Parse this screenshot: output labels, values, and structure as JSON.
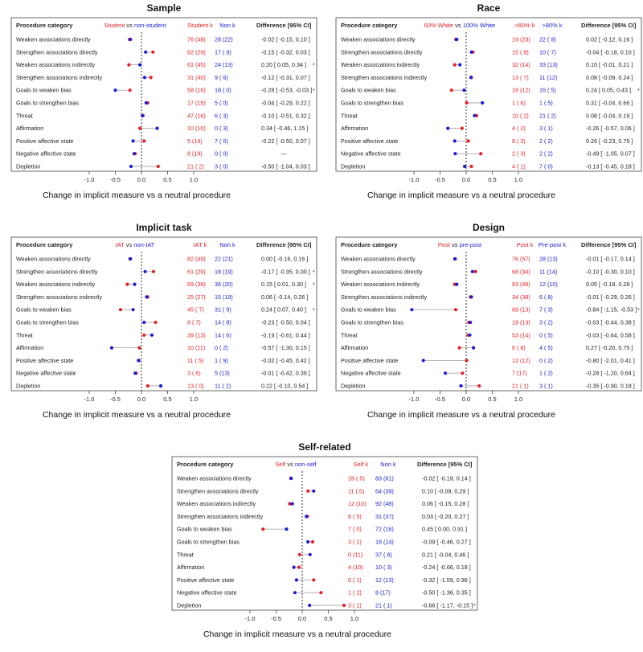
{
  "figure": {
    "xlabel": "Change in implicit measure vs a neutral procedure",
    "header_procedure": "Procedure category",
    "header_diff": "Difference [95% CI]",
    "vs_word": "vs",
    "axis_ticks": [
      -1.0,
      -0.5,
      0.0,
      0.5,
      1.0
    ],
    "axis_tick_labels": [
      "-1.0",
      "-0.5",
      "0.0",
      "0.5",
      "1.0"
    ],
    "xlim": [
      -1.0,
      1.0
    ],
    "sig_marker": "*",
    "colors": {
      "group1": "#e8202a",
      "group2": "#1c1cd6",
      "segment": "#aaaaaa",
      "zero_line": "#000000"
    },
    "categories": [
      "Weaken associations directly",
      "Strengthen associations directly",
      "Weaken associations indirectly",
      "Strengthen associations indirectly",
      "Goals to weaken bias",
      "Goals to strengthen bias",
      "Threat",
      "Affirmation",
      "Positive affective state",
      "Negative affective state",
      "Depletion"
    ]
  },
  "chart_data": [
    {
      "type": "dot",
      "title": "Sample",
      "group1_name": "Student",
      "group2_name": "non-student",
      "col1_header": "Student k",
      "col2_header": "Non k",
      "group1_values": [
        -0.23,
        0.22,
        -0.24,
        0.18,
        -0.22,
        0.12,
        0.03,
        -0.03,
        0.05,
        -0.12,
        0.32
      ],
      "group2_values": [
        -0.21,
        0.08,
        -0.03,
        0.06,
        -0.5,
        0.09,
        0.02,
        0.3,
        -0.16,
        -0.14,
        -0.2
      ],
      "k1": [
        "76 (48)",
        "62 (29)",
        "61 (45)",
        "31 (40)",
        "58 (16)",
        "17 (15)",
        "47 (16)",
        "10 (10)",
        "5 (14)",
        "8 (19)",
        "21 ( 2)"
      ],
      "k2": [
        "28 (22)",
        "17 ( 9)",
        "24 (13)",
        "9 ( 6)",
        "18 ( 0)",
        "5 ( 0)",
        "6 ( 3)",
        "0 ( 3)",
        "7 ( 0)",
        "0 ( 0)",
        "3 ( 0)"
      ],
      "diff": [
        "-0.02 [ -0.15, 0.10 ]",
        "-0.15 [ -0.32, 0.03 ]",
        "0.20 [ 0.05, 0.34 ]",
        "-0.12 [ -0.31, 0.07 ]",
        "-0.28 [ -0.53, -0.03 ]",
        "-0.04 [ -0.29, 0.22 ]",
        "-0.10 [ -0.51, 0.32 ]",
        "0.34 [ -0.46, 1.15 ]",
        "-0.22 [ -0.50, 0.07 ]",
        "—",
        "-0.50 [ -1.04, 0.03 ]"
      ],
      "sig": [
        false,
        false,
        true,
        false,
        true,
        false,
        false,
        false,
        false,
        false,
        false
      ]
    },
    {
      "type": "dot",
      "title": "Race",
      "group1_name": "60% White",
      "group2_name": "100% White",
      "col1_header": "<80% k",
      "col2_header": ">80% k",
      "group1_values": [
        -0.2,
        0.13,
        -0.22,
        0.1,
        -0.28,
        0.01,
        0.2,
        -0.08,
        0.04,
        0.28,
        0.1
      ],
      "group2_values": [
        -0.18,
        0.1,
        -0.12,
        0.09,
        -0.04,
        0.31,
        0.16,
        -0.35,
        -0.22,
        -0.21,
        -0.03
      ],
      "k1": [
        "19 (23)",
        "15 ( 8)",
        "32 (14)",
        "13 ( 7)",
        "18 (12)",
        "1 ( 6)",
        "10 ( 2)",
        "4 ( 2)",
        "8 ( 3)",
        "2 ( 3)",
        "4 ( 1)"
      ],
      "k2": [
        "22 ( 9)",
        "10 ( 7)",
        "33 (13)",
        "11 (12)",
        "16 ( 5)",
        "1 ( 5)",
        "21 ( 2)",
        "3 ( 1)",
        "2 ( 2)",
        "2 ( 2)",
        "7 ( 0)"
      ],
      "diff": [
        "0.02 [ -0.12, 0.16 ]",
        "-0.04 [ -0.18, 0.10 ]",
        "0.10 [ -0.01, 0.21 ]",
        "0.08 [ -0.09, 0.24 ]",
        "0.24 [ 0.05, 0.43 ]",
        "0.31 [ -0.04, 0.66 ]",
        "0.08 [ -0.04, 0.19 ]",
        "-0.26 [ -0.57, 0.06 ]",
        "0.26 [ -0.23, 0.75 ]",
        "-0.49 [ -1.05, 0.07 ]",
        "-0.13 [ -0.45, 0.18 ]"
      ],
      "sig": [
        false,
        false,
        false,
        false,
        true,
        false,
        false,
        false,
        false,
        false,
        false
      ]
    },
    {
      "type": "dot",
      "title": "Implicit task",
      "group1_name": "IAT",
      "group2_name": "non-IAT",
      "col1_header": "IAT k",
      "col2_header": "Non k",
      "group1_values": [
        -0.22,
        0.23,
        -0.27,
        0.12,
        -0.4,
        0.27,
        0.05,
        -0.04,
        -0.06,
        -0.1,
        0.12
      ],
      "group2_values": [
        -0.21,
        0.07,
        -0.13,
        0.1,
        -0.16,
        0.05,
        0.2,
        -0.57,
        -0.05,
        -0.12,
        0.37
      ],
      "k1": [
        "82 (49)",
        "61 (29)",
        "69 (38)",
        "25 (27)",
        "45 ( 7)",
        "8 ( 7)",
        "39 (13)",
        "10 (11)",
        "11 ( 5)",
        "3 ( 6)",
        "13 ( 0)"
      ],
      "k2": [
        "22 (21)",
        "18 (19)",
        "36 (20)",
        "15 (19)",
        "31 ( 9)",
        "14 ( 8)",
        "14 ( 6)",
        "0 ( 2)",
        "1 ( 9)",
        "5 (13)",
        "11 ( 2)"
      ],
      "diff": [
        "0.00 [ -0.16, 0.16 ]",
        "-0.17 [ -0.35, 0.00 ]",
        "0.15 [ 0.01, 0.30 ]",
        "0.06 [ -0.14, 0.26 ]",
        "0.24 [ 0.07, 0.40 ]",
        "-0.23 [ -0.50, 0.04 ]",
        "-0.19 [ -0.61, 0.44 ]",
        "-0.57 [ -1.30, 0.15 ]",
        "-0.02 [ -0.45, 0.42 ]",
        "-0.01 [ -0.42, 0.39 ]",
        "0.22 [ -0.10, 0.54 ]"
      ],
      "sig": [
        false,
        true,
        true,
        false,
        true,
        false,
        false,
        false,
        false,
        false,
        false
      ]
    },
    {
      "type": "dot",
      "title": "Design",
      "group1_name": "Post",
      "group2_name": "pre-post",
      "col1_header": "Post k",
      "col2_header": "Pre-post k",
      "group1_values": [
        -0.22,
        0.18,
        -0.22,
        0.08,
        -0.2,
        0.05,
        0.04,
        -0.13,
        0.01,
        -0.07,
        0.25
      ],
      "group2_values": [
        -0.21,
        0.12,
        -0.18,
        0.1,
        -1.04,
        0.08,
        0.07,
        0.14,
        -0.82,
        -0.4,
        -0.1
      ],
      "k1": [
        "76 (57)",
        "68 (34)",
        "93 (48)",
        "34 (38)",
        "69 (13)",
        "19 (13)",
        "53 (14)",
        "6 ( 8)",
        "12 (12)",
        "7 (17)",
        "21 ( 1)"
      ],
      "k2": [
        "28 (13)",
        "11 (14)",
        "12 (10)",
        "6 ( 8)",
        "7 ( 3)",
        "3 ( 2)",
        "0 ( 5)",
        "4 ( 5)",
        "0 ( 2)",
        "1 ( 2)",
        "3 ( 1)"
      ],
      "diff": [
        "-0.01 [ -0.17, 0.14 ]",
        "-0.10 [ -0.30, 0.10 ]",
        "0.05 [ -0.18, 0.28 ]",
        "-0.01 [ -0.29, 0.26 ]",
        "-0.84 [ -1.15, -0.53 ]",
        "-0.03 [ -0.44, 0.38 ]",
        "-0.03 [ -0.64, 0.58 ]",
        "0.27 [ -0.20, 0.75 ]",
        "-0.80 [ -2.01, 0.41 ]",
        "-0.28 [ -1.20, 0.64 ]",
        "-0.35 [ -0.90, 0.18 ]"
      ],
      "sig": [
        false,
        false,
        false,
        false,
        true,
        false,
        false,
        false,
        false,
        false,
        false
      ]
    },
    {
      "type": "dot",
      "title": "Self-related",
      "group1_name": "Self",
      "group2_name": "non-self",
      "col1_header": "Self k",
      "col2_header": "Non k",
      "group1_values": [
        -0.22,
        0.11,
        -0.24,
        0.1,
        -0.75,
        0.2,
        -0.05,
        -0.06,
        0.22,
        0.36,
        0.8
      ],
      "group2_values": [
        -0.21,
        0.22,
        -0.19,
        0.08,
        -0.3,
        0.11,
        0.15,
        -0.16,
        -0.11,
        -0.14,
        0.14
      ],
      "k1": [
        "28 ( 5)",
        "11 ( 5)",
        "12 (10)",
        "6 ( 5)",
        "7 ( 0)",
        "3 ( 1)",
        "0 (11)",
        "4 (10)",
        "0 ( 1)",
        "1 ( 2)",
        "3 ( 1)"
      ],
      "k2": [
        "83 (61)",
        "64 (39)",
        "92 (48)",
        "31 (37)",
        "72 (16)",
        "18 (14)",
        "37 ( 8)",
        "10 ( 3)",
        "12 (13)",
        "8 (17)",
        "21 ( 1)"
      ],
      "diff": [
        "-0.02 [ -0.19, 0.14 ]",
        "0.10 [ -0.09, 0.29 ]",
        "0.06 [ -0.15, 0.28 ]",
        "0.03 [ -0.20, 0.27 ]",
        "0.45 [ 0.00, 0.91 ]",
        "-0.09 [ -0.46, 0.27 ]",
        "0.21 [ -0.04, 0.46 ]",
        "-0.24 [ -0.66, 0.18 ]",
        "-0.32 [ -1.59, 0.96 ]",
        "-0.50 [ -1.36, 0.35 ]",
        "-0.66 [ -1.17, -0.15 ]"
      ],
      "sig": [
        false,
        false,
        false,
        false,
        false,
        false,
        false,
        false,
        false,
        false,
        true
      ]
    }
  ]
}
